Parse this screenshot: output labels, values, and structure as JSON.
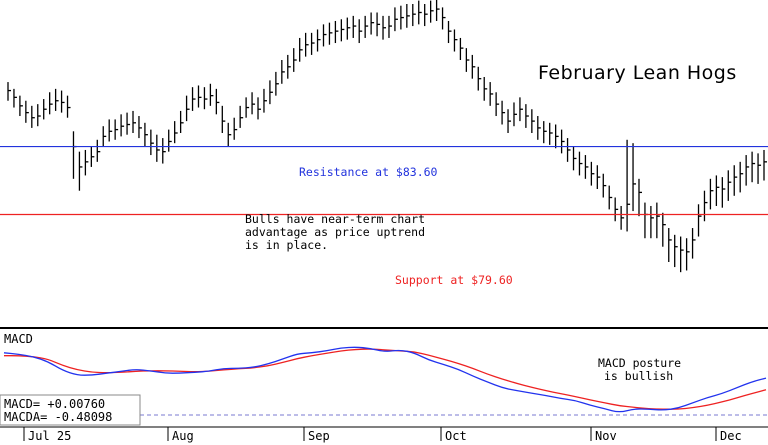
{
  "chart_data": [
    {
      "type": "ohlc",
      "title": "February Lean Hogs",
      "xlabel": "",
      "ylabel": "",
      "grid": false,
      "x_tick_labels": [
        "Jul 25",
        "Aug",
        "Sep",
        "Oct",
        "Nov",
        "Dec"
      ],
      "annotations": {
        "resistance_label": "Resistance at $83.60",
        "support_label": "Support at $79.60",
        "comment": [
          "Bulls have near-term chart",
          "advantage as price uptrend",
          "is in place."
        ]
      },
      "lines": [
        {
          "label": "Resistance at $83.60",
          "value": 83.6,
          "color": "#2233dd"
        },
        {
          "label": "Support at $79.60",
          "value": 79.6,
          "color": "#ee2222"
        }
      ],
      "ylim": [
        73.5,
        92.0
      ],
      "close": [
        86.9,
        86.5,
        86.0,
        85.6,
        85.3,
        85.4,
        85.8,
        86.1,
        86.3,
        86.2,
        85.9,
        83.6,
        82.4,
        82.7,
        83.0,
        83.3,
        84.2,
        84.5,
        84.6,
        84.8,
        84.9,
        85.0,
        84.7,
        84.3,
        83.8,
        83.4,
        83.3,
        83.9,
        84.4,
        85.0,
        85.8,
        86.4,
        86.5,
        86.4,
        86.6,
        86.2,
        85.1,
        84.3,
        84.6,
        85.3,
        85.9,
        86.1,
        85.8,
        86.3,
        86.8,
        87.3,
        88.0,
        88.3,
        88.7,
        89.3,
        89.6,
        89.7,
        89.9,
        90.2,
        90.3,
        90.4,
        90.5,
        90.6,
        90.7,
        90.4,
        90.7,
        90.9,
        90.8,
        90.6,
        90.7,
        91.1,
        91.2,
        91.3,
        91.4,
        91.5,
        91.4,
        91.6,
        91.7,
        91.2,
        90.4,
        89.9,
        89.4,
        88.7,
        88.3,
        87.6,
        87.0,
        86.7,
        86.1,
        85.6,
        85.1,
        85.5,
        85.8,
        85.4,
        85.1,
        84.7,
        84.5,
        84.4,
        84.2,
        83.9,
        83.4,
        82.9,
        82.6,
        82.4,
        82.0,
        81.8,
        81.3,
        80.6,
        79.9,
        79.4,
        80.2,
        81.4,
        80.9,
        79.6,
        79.4,
        79.5,
        79.0,
        78.1,
        77.7,
        77.5,
        77.4,
        78.1,
        79.5,
        80.3,
        81.0,
        81.2,
        81.1,
        81.5,
        81.8,
        82.0,
        82.4,
        82.6,
        82.5,
        82.7
      ],
      "high": [
        87.4,
        87.0,
        86.6,
        86.3,
        86.0,
        86.1,
        86.4,
        86.8,
        87.0,
        86.9,
        86.6,
        84.5,
        83.3,
        83.4,
        83.6,
        84.0,
        84.8,
        85.2,
        85.2,
        85.5,
        85.6,
        85.7,
        85.4,
        85.0,
        84.6,
        84.3,
        84.1,
        84.6,
        85.1,
        85.7,
        86.6,
        87.1,
        87.2,
        87.1,
        87.3,
        87.0,
        86.0,
        85.0,
        85.3,
        86.0,
        86.5,
        86.8,
        86.5,
        87.0,
        87.5,
        88.0,
        88.7,
        89.0,
        89.4,
        90.0,
        90.3,
        90.3,
        90.5,
        90.8,
        90.9,
        91.0,
        91.1,
        91.2,
        91.3,
        91.1,
        91.3,
        91.5,
        91.5,
        91.3,
        91.3,
        91.8,
        91.9,
        92.0,
        92.0,
        92.2,
        92.0,
        92.2,
        92.4,
        91.8,
        91.0,
        90.5,
        90.0,
        89.4,
        89.0,
        88.3,
        87.7,
        87.4,
        86.8,
        86.3,
        85.8,
        86.2,
        86.5,
        86.1,
        85.8,
        85.4,
        85.1,
        85.0,
        84.9,
        84.6,
        84.1,
        83.6,
        83.3,
        83.1,
        82.7,
        82.5,
        82.0,
        81.3,
        80.6,
        80.1,
        84.0,
        83.8,
        81.7,
        80.3,
        80.1,
        80.3,
        79.7,
        78.8,
        78.4,
        78.3,
        78.2,
        78.8,
        80.2,
        81.0,
        81.7,
        81.9,
        81.8,
        82.2,
        82.5,
        82.7,
        83.1,
        83.3,
        83.2,
        83.4
      ],
      "low": [
        86.3,
        85.9,
        85.4,
        85.0,
        84.7,
        84.8,
        85.2,
        85.5,
        85.7,
        85.6,
        85.3,
        81.7,
        81.0,
        81.9,
        82.4,
        82.7,
        83.6,
        83.9,
        84.0,
        84.2,
        84.3,
        84.4,
        84.1,
        83.6,
        83.1,
        82.7,
        82.6,
        83.3,
        83.8,
        84.4,
        85.1,
        85.7,
        85.9,
        85.8,
        86.0,
        85.5,
        84.4,
        83.6,
        84.0,
        84.7,
        85.3,
        85.5,
        85.2,
        85.6,
        86.1,
        86.6,
        87.3,
        87.6,
        88.0,
        88.6,
        88.9,
        89.0,
        89.2,
        89.5,
        89.6,
        89.7,
        89.8,
        89.9,
        90.0,
        89.7,
        90.0,
        90.2,
        90.1,
        89.9,
        90.0,
        90.4,
        90.5,
        90.6,
        90.7,
        90.8,
        90.7,
        90.9,
        91.0,
        90.5,
        89.7,
        89.2,
        88.7,
        88.0,
        87.6,
        86.9,
        86.3,
        86.0,
        85.4,
        84.9,
        84.4,
        84.8,
        85.1,
        84.7,
        84.4,
        84.0,
        83.8,
        83.7,
        83.5,
        83.2,
        82.7,
        82.2,
        81.9,
        81.7,
        81.3,
        81.1,
        80.6,
        79.9,
        79.2,
        78.7,
        78.6,
        79.8,
        79.5,
        78.2,
        78.2,
        78.2,
        77.7,
        76.8,
        76.5,
        76.2,
        76.3,
        77.0,
        78.3,
        79.2,
        79.9,
        80.1,
        80.0,
        80.4,
        80.7,
        80.9,
        81.3,
        81.5,
        81.4,
        81.6
      ]
    },
    {
      "type": "line",
      "title": "MACD",
      "grid": false,
      "ylim": [
        -0.62,
        0.82
      ],
      "series": [
        {
          "name": "MACD",
          "color": "#2233ee",
          "values": [
            0.68,
            0.65,
            0.6,
            0.5,
            0.32,
            0.22,
            0.22,
            0.26,
            0.3,
            0.34,
            0.31,
            0.26,
            0.26,
            0.28,
            0.3,
            0.36,
            0.36,
            0.38,
            0.45,
            0.55,
            0.66,
            0.68,
            0.72,
            0.78,
            0.8,
            0.77,
            0.7,
            0.74,
            0.68,
            0.53,
            0.44,
            0.34,
            0.2,
            0.08,
            -0.04,
            -0.1,
            -0.15,
            -0.2,
            -0.26,
            -0.3,
            -0.4,
            -0.47,
            -0.55,
            -0.47,
            -0.48,
            -0.5,
            -0.46,
            -0.35,
            -0.24,
            -0.16,
            -0.04,
            0.08,
            0.16
          ]
        },
        {
          "name": "MACDA",
          "color": "#ee2222",
          "values": [
            0.62,
            0.62,
            0.6,
            0.55,
            0.42,
            0.33,
            0.28,
            0.27,
            0.28,
            0.3,
            0.31,
            0.31,
            0.3,
            0.29,
            0.3,
            0.33,
            0.35,
            0.37,
            0.41,
            0.48,
            0.56,
            0.62,
            0.67,
            0.72,
            0.75,
            0.76,
            0.74,
            0.72,
            0.7,
            0.63,
            0.55,
            0.46,
            0.36,
            0.24,
            0.14,
            0.05,
            -0.03,
            -0.1,
            -0.16,
            -0.22,
            -0.29,
            -0.35,
            -0.41,
            -0.44,
            -0.47,
            -0.48,
            -0.48,
            -0.45,
            -0.4,
            -0.33,
            -0.25,
            -0.16,
            -0.08
          ]
        }
      ],
      "readout": {
        "macd": "MACD=  +0.00760",
        "macda": "MACDA= -0.48098"
      },
      "annotation": [
        "MACD posture",
        "is bullish"
      ]
    }
  ]
}
